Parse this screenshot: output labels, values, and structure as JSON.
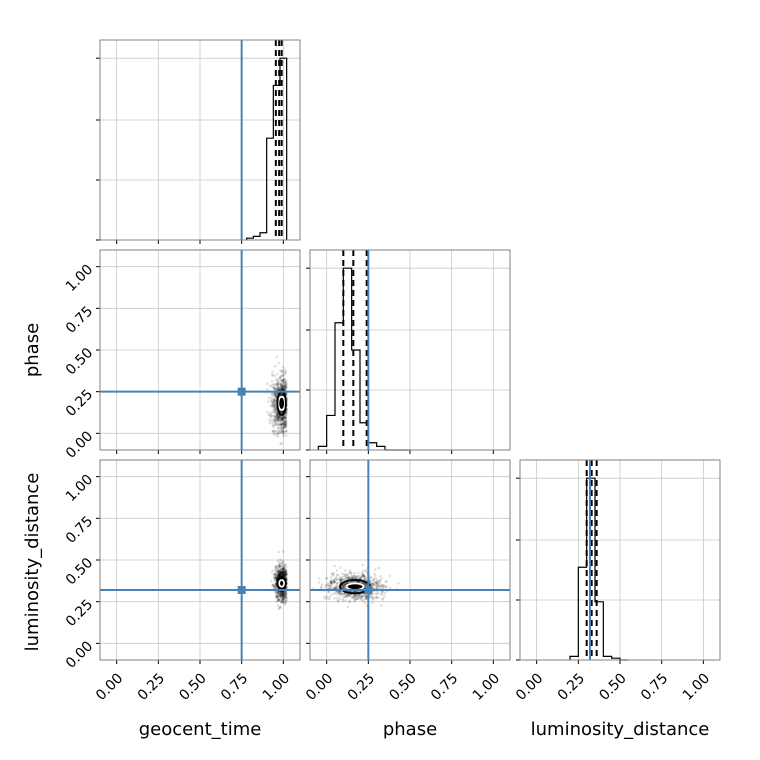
{
  "chart_data": {
    "type": "corner",
    "parameters": [
      "geocent_time",
      "phase",
      "luminosity_distance"
    ],
    "axis_range": [
      -0.1,
      1.1
    ],
    "ticks": [
      0.0,
      0.25,
      0.5,
      0.75,
      1.0
    ],
    "tick_labels": [
      "0.00",
      "0.25",
      "0.50",
      "0.75",
      "1.00"
    ],
    "grid": true,
    "truths": {
      "geocent_time": 0.75,
      "phase": 0.25,
      "luminosity_distance": 0.32
    },
    "truth_color": "#4682b4",
    "marginals": [
      {
        "parameter": "geocent_time",
        "bin_edges": [
          0.78,
          0.82,
          0.86,
          0.9,
          0.94,
          0.98,
          1.02
        ],
        "counts": [
          0.01,
          0.02,
          0.04,
          0.56,
          0.85,
          1.0
        ],
        "quantiles": [
          0.955,
          0.975,
          0.99
        ]
      },
      {
        "parameter": "phase",
        "bin_edges": [
          -0.05,
          0.0,
          0.05,
          0.1,
          0.15,
          0.2,
          0.25,
          0.3,
          0.35,
          0.4,
          0.45,
          0.5
        ],
        "counts": [
          0.02,
          0.19,
          0.7,
          1.0,
          0.55,
          0.15,
          0.04,
          0.02,
          0.0,
          0.0,
          0.0
        ],
        "quantiles": [
          0.1,
          0.16,
          0.24
        ]
      },
      {
        "parameter": "luminosity_distance",
        "bin_edges": [
          0.2,
          0.25,
          0.3,
          0.35,
          0.4,
          0.45,
          0.5,
          0.55
        ],
        "counts": [
          0.02,
          0.51,
          1.0,
          0.32,
          0.02,
          0.01,
          0.0
        ],
        "quantiles": [
          0.3,
          0.33,
          0.36
        ]
      }
    ],
    "joint": [
      {
        "x": "geocent_time",
        "y": "phase",
        "center": [
          0.99,
          0.18
        ],
        "spread": [
          0.03,
          0.08
        ],
        "contours": [
          [
            0.02,
            0.04
          ],
          [
            0.025,
            0.07
          ]
        ],
        "truth": [
          0.75,
          0.25
        ]
      },
      {
        "x": "geocent_time",
        "y": "luminosity_distance",
        "center": [
          0.99,
          0.36
        ],
        "spread": [
          0.02,
          0.05
        ],
        "contours": [
          [
            0.015,
            0.02
          ],
          [
            0.025,
            0.035
          ]
        ],
        "truth": [
          0.75,
          0.32
        ]
      },
      {
        "x": "phase",
        "y": "luminosity_distance",
        "center": [
          0.17,
          0.34
        ],
        "spread": [
          0.08,
          0.04
        ],
        "contours": [
          [
            0.05,
            0.02
          ],
          [
            0.09,
            0.04
          ]
        ],
        "truth": [
          0.25,
          0.32
        ]
      }
    ]
  }
}
